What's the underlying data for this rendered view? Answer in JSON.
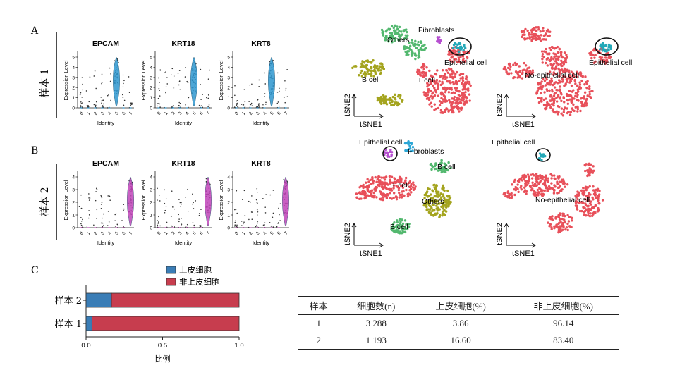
{
  "panel_letters": {
    "a": "A",
    "b": "B",
    "c": "C"
  },
  "sample_labels": {
    "s1": "样本 1",
    "s2": "样本 2"
  },
  "violin_common": {
    "ylabel": "Expression Level",
    "xlabel": "Identity"
  },
  "violin_rows": [
    {
      "color": "#2e97cf",
      "highlight_cluster": "5",
      "categories": [
        "0",
        "1",
        "2",
        "3",
        "4",
        "5",
        "6",
        "7"
      ],
      "plots": [
        {
          "title": "EPCAM",
          "yticks": [
            "0",
            "1",
            "2",
            "3",
            "4",
            "5"
          ]
        },
        {
          "title": "KRT18",
          "yticks": [
            "0",
            "1",
            "2",
            "3",
            "4",
            "5"
          ]
        },
        {
          "title": "KRT8",
          "yticks": [
            "0",
            "1",
            "2",
            "3",
            "4",
            "5"
          ]
        }
      ]
    },
    {
      "color": "#c044b8",
      "highlight_cluster": "7",
      "categories": [
        "0",
        "1",
        "2",
        "3",
        "4",
        "5",
        "6",
        "7"
      ],
      "plots": [
        {
          "title": "EPCAM",
          "yticks": [
            "0",
            "1",
            "2",
            "3",
            "4"
          ]
        },
        {
          "title": "KRT18",
          "yticks": [
            "0",
            "1",
            "2",
            "3",
            "4"
          ]
        },
        {
          "title": "KRT8",
          "yticks": [
            "0",
            "1",
            "2",
            "3",
            "4"
          ]
        }
      ]
    }
  ],
  "tsne_axes": {
    "x": "tSNE1",
    "y": "tSNE2"
  },
  "tsne_colors": {
    "t_cell": "#e8505a",
    "b_cell": "#53b86f",
    "others": "#a4a41e",
    "fibroblasts": "#b64fd0",
    "epithelial": "#23a8b8",
    "epithelial_b": "#b64fd0",
    "fibroblasts_b": "#2aa6d6",
    "gray_circle": "#111111"
  },
  "tsne_labels": {
    "a_left": {
      "fibroblasts": "Fibroblasts",
      "others": "Others",
      "epithelial": "Epithelial cell",
      "b_cell": "B cell",
      "t_cell": "T cell"
    },
    "a_right": {
      "epithelial": "Epithelial cell",
      "non_epithelial": "No-epithelial cell"
    },
    "b_left": {
      "epithelial": "Epithelial cell",
      "fibroblasts": "Fibroblasts",
      "b_cell_top": "B cell",
      "t_cell": "T cell",
      "others": "Others",
      "b_cell_bottom": "B cell"
    },
    "b_right": {
      "epithelial": "Epithelial cell",
      "non_epithelial": "No-epithelial cell"
    }
  },
  "chart_data": {
    "type": "bar",
    "orientation": "horizontal",
    "stacked": true,
    "categories": [
      "样本 1",
      "样本 2"
    ],
    "series": [
      {
        "name": "上皮细胞",
        "color": "#3a7db6",
        "values": [
          0.0386,
          0.166
        ]
      },
      {
        "name": "非上皮细胞",
        "color": "#c73d4e",
        "values": [
          0.9614,
          0.834
        ]
      }
    ],
    "xlabel": "比例",
    "xticks": [
      "0.0",
      "0.5",
      "1.0"
    ],
    "xlim": [
      0,
      1
    ],
    "legend_position": "top"
  },
  "table": {
    "headers": [
      "样本",
      "细胞数(n)",
      "上皮细胞(%)",
      "非上皮细胞(%)"
    ],
    "rows": [
      [
        "1",
        "3 288",
        "3.86",
        "96.14"
      ],
      [
        "2",
        "1 193",
        "16.60",
        "83.40"
      ]
    ]
  }
}
